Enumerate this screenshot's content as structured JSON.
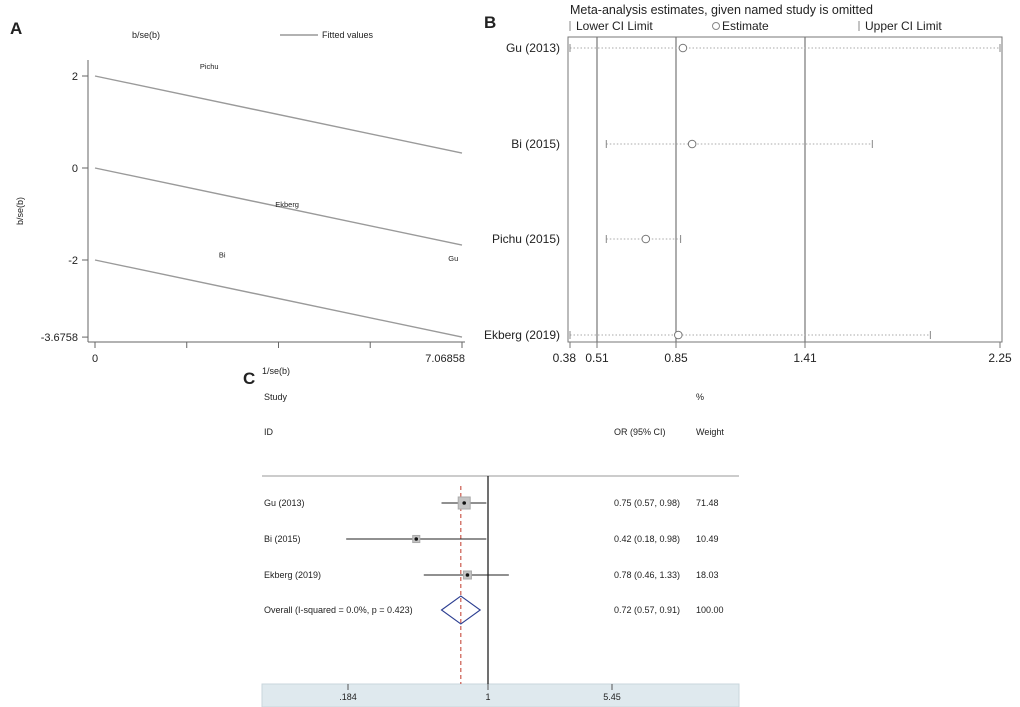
{
  "chart_data": [
    {
      "panel": "A",
      "type": "line",
      "title": "",
      "xlabel": "1/se(b)",
      "ylabel": "b/se(b)",
      "legend": {
        "placement": "top",
        "entries": [
          {
            "label": "b/se(b)"
          },
          {
            "label": "Fitted values"
          }
        ]
      },
      "xlim": [
        0,
        7.06858
      ],
      "ylim": [
        -3.6758,
        2.45
      ],
      "x_ticks": [
        {
          "value": 0,
          "label": "0"
        },
        {
          "value": 1.767,
          "label": ""
        },
        {
          "value": 3.534,
          "label": ""
        },
        {
          "value": 5.301,
          "label": ""
        },
        {
          "value": 7.06858,
          "label": "7.06858"
        }
      ],
      "y_ticks": [
        {
          "value": 2,
          "label": "2"
        },
        {
          "value": 0,
          "label": "0"
        },
        {
          "value": -2,
          "label": "-2"
        },
        {
          "value": -3.6758,
          "label": "-3.6758"
        }
      ],
      "series": [
        {
          "x": [
            0,
            7.06858
          ],
          "y": [
            2,
            0.3242
          ]
        },
        {
          "x": [
            0,
            7.06858
          ],
          "y": [
            0,
            -1.6758
          ]
        },
        {
          "x": [
            0,
            7.06858
          ],
          "y": [
            -2,
            -3.6758
          ]
        }
      ],
      "points": [
        {
          "label": "Pichu",
          "x": 2.2,
          "y": 2.15
        },
        {
          "label": "Ekberg",
          "x": 3.7,
          "y": -0.85
        },
        {
          "label": "Bi",
          "x": 2.45,
          "y": -1.95
        },
        {
          "label": "Gu",
          "x": 6.9,
          "y": -2.02
        }
      ],
      "grid": false
    },
    {
      "panel": "B",
      "type": "forest",
      "title": "Meta-analysis estimates, given named study is omitted",
      "legend": {
        "placement": "top",
        "entries": [
          {
            "label": "Lower CI Limit"
          },
          {
            "label": "Estimate"
          },
          {
            "label": "Upper CI Limit"
          }
        ]
      },
      "x_ticks": [
        {
          "value": 0.38,
          "label": "0.38"
        },
        {
          "value": 0.51,
          "label": "0.51"
        },
        {
          "value": 0.85,
          "label": "0.85"
        },
        {
          "value": 1.41,
          "label": "1.41"
        },
        {
          "value": 2.25,
          "label": "2.25"
        }
      ],
      "xlim": [
        0.38,
        2.25
      ],
      "reference_lines": [
        0.51,
        0.85,
        1.41
      ],
      "studies": [
        {
          "label": "Gu (2013)",
          "estimate": 0.88,
          "lower": 0.38,
          "upper": 2.25
        },
        {
          "label": "Bi (2015)",
          "estimate": 0.92,
          "lower": 0.55,
          "upper": 1.7
        },
        {
          "label": "Pichu (2015)",
          "estimate": 0.72,
          "lower": 0.55,
          "upper": 0.87
        },
        {
          "label": "Ekberg (2019)",
          "estimate": 0.86,
          "lower": 0.38,
          "upper": 1.95
        }
      ]
    },
    {
      "panel": "C",
      "type": "forest",
      "title": "",
      "header": {
        "study": "Study",
        "id": "ID",
        "or": "OR (95% CI)",
        "pct": "%",
        "weight": "Weight"
      },
      "x_ticks": [
        {
          "value": 0.184,
          "label": ".184"
        },
        {
          "value": 1,
          "label": "1"
        },
        {
          "value": 5.45,
          "label": "5.45"
        }
      ],
      "xlim": [
        0.184,
        5.45
      ],
      "null_line": 1,
      "overall_line": 0.72,
      "studies": [
        {
          "label": "Gu (2013)",
          "or": 0.75,
          "lower": 0.57,
          "upper": 0.98,
          "ci_text": "0.75 (0.57, 0.98)",
          "weight": "71.48"
        },
        {
          "label": "Bi (2015)",
          "or": 0.42,
          "lower": 0.18,
          "upper": 0.98,
          "ci_text": "0.42 (0.18, 0.98)",
          "weight": "10.49"
        },
        {
          "label": "Ekberg (2019)",
          "or": 0.78,
          "lower": 0.46,
          "upper": 1.33,
          "ci_text": "0.78 (0.46, 1.33)",
          "weight": "18.03"
        }
      ],
      "overall": {
        "label": "Overall  (I-squared = 0.0%, p = 0.423)",
        "or": 0.72,
        "lower": 0.57,
        "upper": 0.91,
        "ci_text": "0.72 (0.57, 0.91)",
        "weight": "100.00"
      }
    }
  ],
  "panel_labels": [
    "A",
    "B",
    "C"
  ]
}
